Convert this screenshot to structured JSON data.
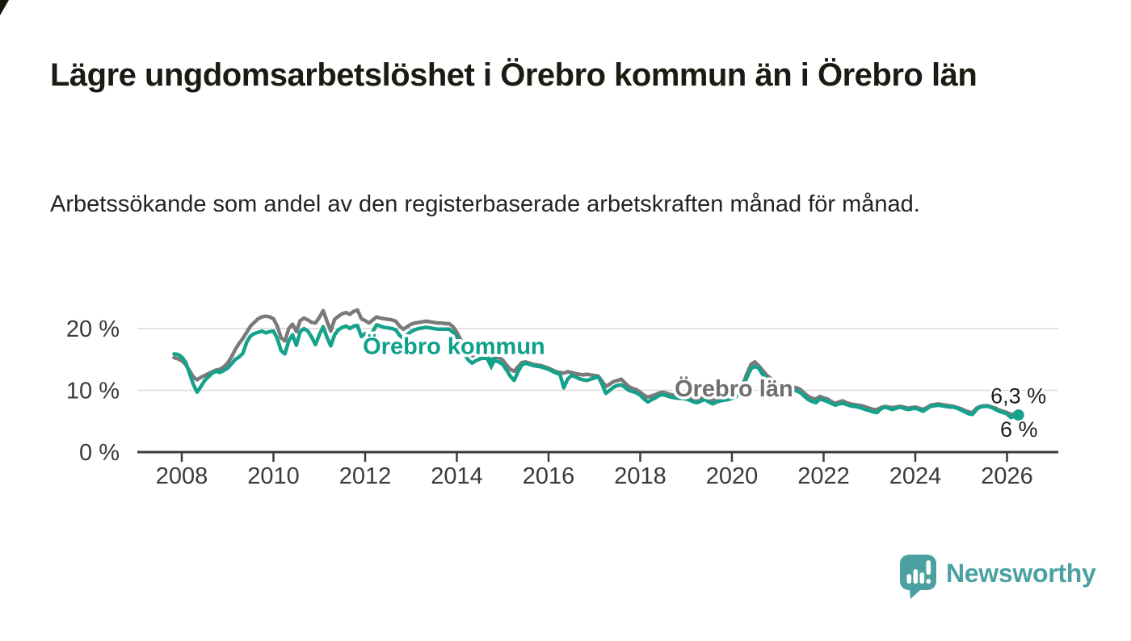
{
  "header": {
    "title": "Lägre ungdomsarbetslöshet i Örebro kommun än i Örebro län",
    "subtitle": "Arbetssökande som andel av den registerbaserade arbetskraften månad för månad."
  },
  "footer": {
    "brand": "Newsworthy",
    "brand_color": "#4ba1a1"
  },
  "colors": {
    "kommun_line": "#14a28c",
    "lan_line": "#7a7a7a",
    "grid": "#d9d9d9",
    "axis": "#3a3a3a",
    "tick_text": "#3a3a3a",
    "value_label_text": "#1d1d1d"
  },
  "chart_data": {
    "type": "line",
    "title": "Lägre ungdomsarbetslöshet i Örebro kommun än i Örebro län",
    "subtitle": "Arbetssökande som andel av den registerbaserade arbetskraften månad för månad.",
    "unit": "percent",
    "x_start": {
      "year": 2007,
      "month": 11
    },
    "x_step_months": 1,
    "x_axis": {
      "ticks": [
        2008,
        2010,
        2012,
        2014,
        2016,
        2018,
        2020,
        2022,
        2024,
        2026
      ]
    },
    "y_axis": {
      "ticks": [
        {
          "value": 0,
          "label": "0 %"
        },
        {
          "value": 10,
          "label": "10 %"
        },
        {
          "value": 20,
          "label": "20 %"
        }
      ],
      "range": [
        0,
        24
      ],
      "grid": true
    },
    "series": [
      {
        "name": "Örebro kommun",
        "color": "#14a28c",
        "end_value_label": "6 %",
        "values": [
          15.9,
          15.8,
          15.4,
          14.6,
          12.8,
          11.0,
          9.7,
          10.6,
          11.6,
          12.2,
          12.8,
          13.1,
          12.9,
          13.2,
          13.6,
          14.3,
          15.0,
          15.4,
          16.0,
          17.8,
          18.8,
          19.2,
          19.4,
          19.6,
          19.3,
          19.5,
          19.6,
          18.4,
          16.4,
          15.9,
          18.0,
          19.0,
          17.3,
          19.5,
          20.0,
          19.6,
          18.6,
          17.4,
          19.0,
          20.3,
          18.6,
          17.2,
          19.0,
          19.8,
          20.2,
          20.4,
          20.0,
          20.4,
          20.5,
          18.7,
          19.2,
          18.9,
          19.5,
          20.6,
          20.4,
          20.2,
          20.1,
          20.0,
          19.8,
          18.9,
          18.4,
          19.0,
          19.5,
          19.8,
          20.0,
          20.1,
          20.2,
          20.1,
          20.0,
          19.9,
          19.9,
          19.9,
          19.9,
          19.4,
          18.6,
          17.4,
          16.0,
          14.9,
          14.4,
          14.8,
          15.1,
          15.2,
          15.2,
          15.0,
          14.8,
          14.6,
          14.2,
          13.3,
          12.3,
          11.6,
          13.0,
          14.1,
          14.4,
          14.2,
          14.0,
          13.9,
          13.8,
          13.6,
          13.4,
          13.1,
          12.8,
          12.6,
          10.4,
          11.8,
          12.4,
          12.2,
          11.9,
          11.7,
          11.6,
          11.8,
          12.0,
          12.2,
          11.0,
          9.5,
          10.0,
          10.5,
          10.8,
          10.9,
          10.5,
          10.0,
          9.8,
          9.6,
          9.2,
          8.6,
          8.1,
          8.5,
          8.8,
          9.2,
          9.3,
          9.1,
          8.9,
          8.8,
          8.7,
          8.7,
          8.6,
          8.4,
          8.1,
          8.0,
          8.3,
          8.5,
          8.1,
          7.8,
          8.1,
          8.3,
          8.4,
          8.5,
          8.7,
          8.9,
          9.8,
          10.8,
          12.2,
          13.5,
          13.9,
          13.6,
          12.6,
          12.0,
          11.6,
          11.2,
          10.8,
          10.5,
          10.3,
          10.2,
          10.0,
          9.9,
          9.6,
          9.0,
          8.5,
          8.2,
          8.0,
          8.6,
          8.4,
          8.2,
          7.9,
          7.6,
          7.8,
          7.9,
          7.7,
          7.5,
          7.4,
          7.3,
          7.1,
          6.9,
          6.7,
          6.5,
          6.4,
          7.0,
          7.3,
          7.1,
          6.9,
          7.1,
          7.3,
          7.1,
          6.9,
          7.0,
          7.1,
          6.9,
          6.6,
          7.0,
          7.4,
          7.5,
          7.6,
          7.5,
          7.4,
          7.3,
          7.3,
          7.1,
          6.8,
          6.5,
          6.2,
          6.1,
          6.9,
          7.3,
          7.4,
          7.4,
          7.2,
          6.9,
          6.6,
          6.4,
          6.2,
          5.6,
          5.8,
          6.0
        ]
      },
      {
        "name": "Örebro län",
        "color": "#7a7a7a",
        "end_value_label": "6,3 %",
        "values": [
          15.3,
          15.1,
          14.8,
          14.2,
          13.2,
          12.2,
          11.7,
          12.1,
          12.4,
          12.7,
          13.0,
          13.3,
          13.4,
          13.8,
          14.4,
          15.4,
          16.6,
          17.6,
          18.4,
          19.4,
          20.4,
          21.0,
          21.6,
          21.9,
          22.0,
          21.9,
          21.6,
          20.4,
          18.5,
          18.0,
          20.0,
          20.7,
          19.5,
          21.3,
          21.7,
          21.4,
          21.0,
          20.9,
          21.8,
          22.9,
          21.2,
          19.6,
          21.5,
          22.0,
          22.4,
          22.6,
          22.3,
          22.8,
          23.0,
          21.6,
          21.3,
          20.9,
          21.4,
          21.9,
          21.7,
          21.6,
          21.5,
          21.4,
          21.2,
          20.4,
          19.9,
          20.3,
          20.7,
          20.9,
          21.0,
          21.1,
          21.2,
          21.1,
          21.0,
          20.9,
          20.9,
          20.8,
          20.8,
          20.3,
          19.4,
          18.2,
          17.0,
          16.0,
          15.6,
          15.8,
          16.0,
          15.9,
          15.8,
          15.7,
          15.5,
          15.3,
          14.9,
          14.1,
          13.4,
          13.1,
          13.8,
          14.5,
          14.6,
          14.4,
          14.2,
          14.1,
          14.0,
          13.8,
          13.6,
          13.3,
          13.0,
          12.9,
          12.8,
          13.0,
          12.9,
          12.7,
          12.6,
          12.5,
          12.6,
          12.5,
          12.4,
          12.3,
          11.5,
          10.6,
          11.0,
          11.4,
          11.6,
          11.8,
          11.2,
          10.6,
          10.3,
          10.1,
          9.7,
          9.2,
          8.9,
          9.1,
          9.3,
          9.6,
          9.7,
          9.5,
          9.3,
          9.2,
          9.1,
          9.1,
          9.0,
          8.8,
          8.6,
          8.5,
          8.7,
          8.9,
          8.6,
          8.4,
          8.6,
          8.7,
          8.7,
          8.8,
          8.9,
          9.2,
          10.2,
          11.2,
          12.8,
          14.2,
          14.6,
          14.0,
          13.3,
          12.5,
          12.0,
          11.6,
          11.2,
          10.9,
          10.7,
          10.6,
          10.5,
          10.4,
          10.1,
          9.5,
          9.0,
          8.7,
          8.6,
          9.0,
          8.8,
          8.6,
          8.2,
          7.9,
          8.1,
          8.3,
          8.0,
          7.8,
          7.7,
          7.6,
          7.5,
          7.3,
          7.1,
          6.9,
          6.9,
          7.2,
          7.4,
          7.3,
          7.2,
          7.3,
          7.4,
          7.3,
          7.1,
          7.2,
          7.3,
          7.1,
          6.9,
          7.2,
          7.6,
          7.7,
          7.8,
          7.7,
          7.6,
          7.5,
          7.4,
          7.2,
          7.0,
          6.7,
          6.5,
          6.4,
          7.1,
          7.4,
          7.5,
          7.5,
          7.3,
          7.1,
          6.8,
          6.6,
          6.4,
          6.1,
          6.2,
          6.3
        ]
      }
    ],
    "annotations": [
      {
        "type": "series-label",
        "text": "Örebro kommun",
        "color": "#0ea08a",
        "x_year": 2011.95,
        "y_pct": 15.9
      },
      {
        "type": "arrow",
        "color": "#14a28c",
        "x_year": 2014.75,
        "tip_y_pct": 13.2,
        "base_y_pct": 15.3
      },
      {
        "type": "series-label",
        "text": "Örebro län",
        "color": "#6f6f6f",
        "x_year": 2018.75,
        "y_pct": 9.0
      },
      {
        "type": "value-label",
        "text": "6,3 %",
        "x_year": 2025.64,
        "y_pct": 7.9
      },
      {
        "type": "value-label",
        "text": "6 %",
        "x_year": 2025.85,
        "y_pct": 2.5
      }
    ],
    "legend_position": "inline-labels"
  }
}
